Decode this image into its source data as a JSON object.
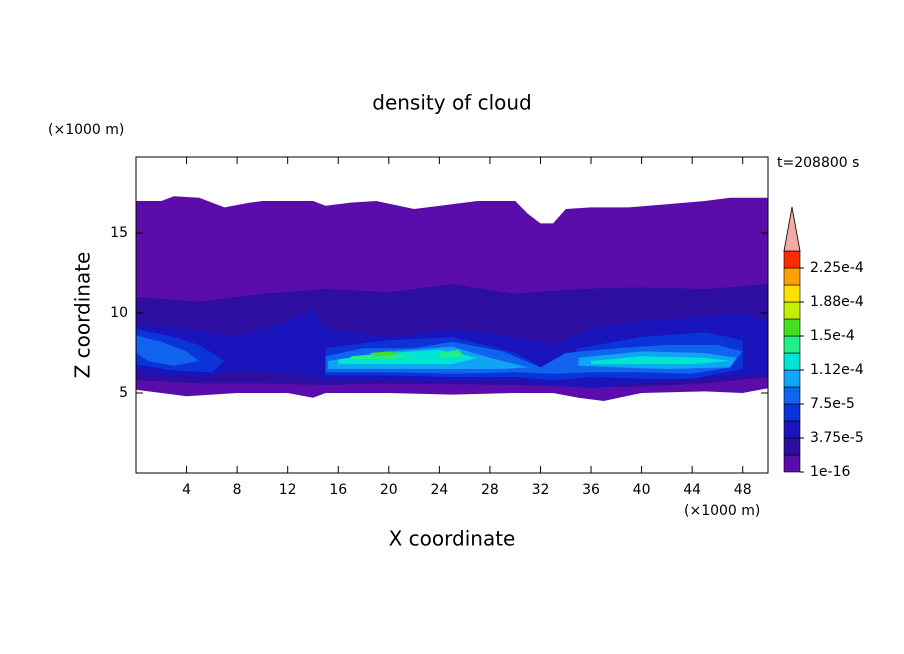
{
  "chart_data": {
    "type": "contour",
    "title": "density of cloud",
    "x_label": "X coordinate",
    "y_label": "Z coordinate",
    "x_unit": "(×1000 m)",
    "y_unit": "(×1000 m)",
    "time_label": "t=208800 s",
    "xlim": [
      0,
      50
    ],
    "ylim": [
      0,
      19.75
    ],
    "xticks": [
      4,
      8,
      12,
      16,
      20,
      24,
      28,
      32,
      36,
      40,
      44,
      48
    ],
    "yticks": [
      5,
      10,
      15
    ],
    "colorbar": {
      "lim": [
        1e-16,
        0.00024375
      ],
      "colors": [
        "#5a0daa",
        "#2c0ea0",
        "#1a14bc",
        "#0a34d8",
        "#1064f0",
        "#10a4f4",
        "#00e4d4",
        "#20f088",
        "#44e020",
        "#c4f000",
        "#ffe000",
        "#ffa000",
        "#ff2a00"
      ],
      "extend_color": "#f4a8a8",
      "ticks": [
        1e-16,
        {
          "value": 3.75e-05,
          "label": "3.75e-5"
        },
        {
          "value": 7.5e-05,
          "label": "7.5e-5"
        },
        {
          "value": 0.0001125,
          "label": "1.12e-4"
        },
        {
          "value": 0.00015,
          "label": "1.5e-4"
        },
        {
          "value": 0.0001875,
          "label": "1.88e-4"
        },
        {
          "value": 0.000225,
          "label": "2.25e-4"
        }
      ]
    },
    "contours": [
      {
        "level": 1e-16,
        "x": [
          0,
          2,
          3,
          5,
          7,
          9,
          10,
          14,
          15,
          17,
          19,
          22,
          25,
          27,
          30,
          31,
          32,
          33,
          34,
          36,
          39,
          42,
          45,
          47,
          50,
          50,
          48,
          45,
          40,
          37,
          35,
          33,
          30,
          25,
          20,
          15,
          14,
          12,
          8,
          4,
          0
        ],
        "z": [
          17,
          17,
          17.3,
          17.2,
          16.6,
          16.9,
          17,
          17,
          16.7,
          16.9,
          17,
          16.5,
          16.8,
          17,
          17,
          16.2,
          15.6,
          15.6,
          16.5,
          16.6,
          16.6,
          16.8,
          17,
          17.2,
          17.2,
          5.3,
          5,
          5.1,
          5,
          4.5,
          4.7,
          5,
          5,
          4.9,
          5,
          5,
          4.7,
          5,
          5,
          4.8,
          5.2
        ]
      },
      {
        "level": 1.875e-05,
        "x": [
          0,
          5,
          10,
          15,
          20,
          25,
          30,
          35,
          40,
          45,
          50,
          50,
          45,
          40,
          35,
          30,
          20,
          15,
          10,
          5,
          0
        ],
        "z": [
          11,
          10.7,
          11.2,
          11.5,
          11.3,
          11.8,
          11.2,
          11.5,
          11.6,
          11.5,
          11.8,
          6,
          5.6,
          5.4,
          5.4,
          5.5,
          5.6,
          5.5,
          5.6,
          5.6,
          5.8
        ]
      },
      {
        "level": 3.75e-05,
        "x": [
          0,
          4,
          8,
          12,
          14,
          15,
          20,
          25,
          30,
          33,
          36,
          40,
          45,
          48,
          50,
          50,
          45,
          40,
          36,
          33,
          30,
          25,
          20,
          15,
          14,
          11,
          8,
          5,
          1,
          0
        ],
        "z": [
          9.3,
          9,
          8.5,
          9.5,
          10.2,
          9,
          8.5,
          9,
          8.5,
          8,
          9,
          9.5,
          9.8,
          10,
          9.5,
          6.2,
          5.9,
          5.6,
          5.3,
          5.5,
          5.8,
          5.7,
          5.8,
          5.8,
          6,
          6.3,
          6.4,
          6,
          6.2,
          6.5
        ]
      },
      {
        "level": 5.625e-05,
        "x": [
          0,
          3,
          5,
          7,
          6,
          3,
          0
        ],
        "z": [
          9,
          8.5,
          8,
          7,
          6.3,
          6.4,
          6.8
        ]
      },
      {
        "level": 5.625e-05,
        "x": [
          15,
          20,
          25,
          30,
          33,
          35,
          40,
          45,
          48,
          48,
          44,
          40,
          36,
          33,
          30,
          25,
          20,
          15
        ],
        "z": [
          7.8,
          8.3,
          8.5,
          7.5,
          6.2,
          7.8,
          8.5,
          8.8,
          8.3,
          6.5,
          5.9,
          5.9,
          6,
          5.8,
          6,
          6,
          6.1,
          6.1
        ]
      },
      {
        "level": 7.5e-05,
        "x": [
          0,
          2,
          4,
          5,
          3,
          1,
          0
        ],
        "z": [
          8.6,
          8.2,
          7.6,
          7,
          6.7,
          7,
          7.5
        ]
      },
      {
        "level": 7.5e-05,
        "x": [
          15,
          18,
          22,
          25,
          29,
          32,
          34,
          38,
          42,
          46,
          48,
          47,
          44,
          40,
          36,
          33,
          30,
          25,
          20,
          15
        ],
        "z": [
          7.3,
          7.8,
          7.8,
          8.2,
          7.6,
          6.6,
          7.5,
          7.8,
          8,
          8,
          7.6,
          6.6,
          6.2,
          6.3,
          6.3,
          6.2,
          6.3,
          6.2,
          6.3,
          6.3
        ]
      },
      {
        "level": 9.375e-05,
        "x": [
          15.2,
          20,
          25,
          28,
          31,
          29,
          24,
          20,
          15.2
        ],
        "z": [
          7,
          7.6,
          7.9,
          7.2,
          6.6,
          6.5,
          6.5,
          6.5,
          6.5
        ]
      },
      {
        "level": 9.375e-05,
        "x": [
          35,
          40,
          45,
          47.5,
          47,
          42,
          38,
          35
        ],
        "z": [
          7.2,
          7.6,
          7.5,
          7.2,
          6.6,
          6.5,
          6.6,
          6.7
        ]
      },
      {
        "level": 0.0001125,
        "x": [
          16,
          20,
          24,
          27,
          25,
          20,
          16
        ],
        "z": [
          7.1,
          7.5,
          7.7,
          7.2,
          6.8,
          6.8,
          6.8
        ]
      },
      {
        "level": 0.0001125,
        "x": [
          36,
          40,
          45,
          47,
          44,
          40,
          36
        ],
        "z": [
          7,
          7.3,
          7.2,
          7,
          6.8,
          6.8,
          6.8
        ]
      },
      {
        "level": 0.00013125,
        "x": [
          17,
          20,
          22,
          20,
          17
        ],
        "z": [
          7.3,
          7.5,
          7.3,
          7.1,
          7.1
        ]
      },
      {
        "level": 0.00013125,
        "x": [
          24,
          25.5,
          26,
          24
        ],
        "z": [
          7.5,
          7.7,
          7.3,
          7.2
        ]
      },
      {
        "level": 0.00015,
        "x": [
          18.5,
          20,
          21,
          19
        ],
        "z": [
          7.5,
          7.6,
          7.4,
          7.3
        ]
      }
    ]
  }
}
